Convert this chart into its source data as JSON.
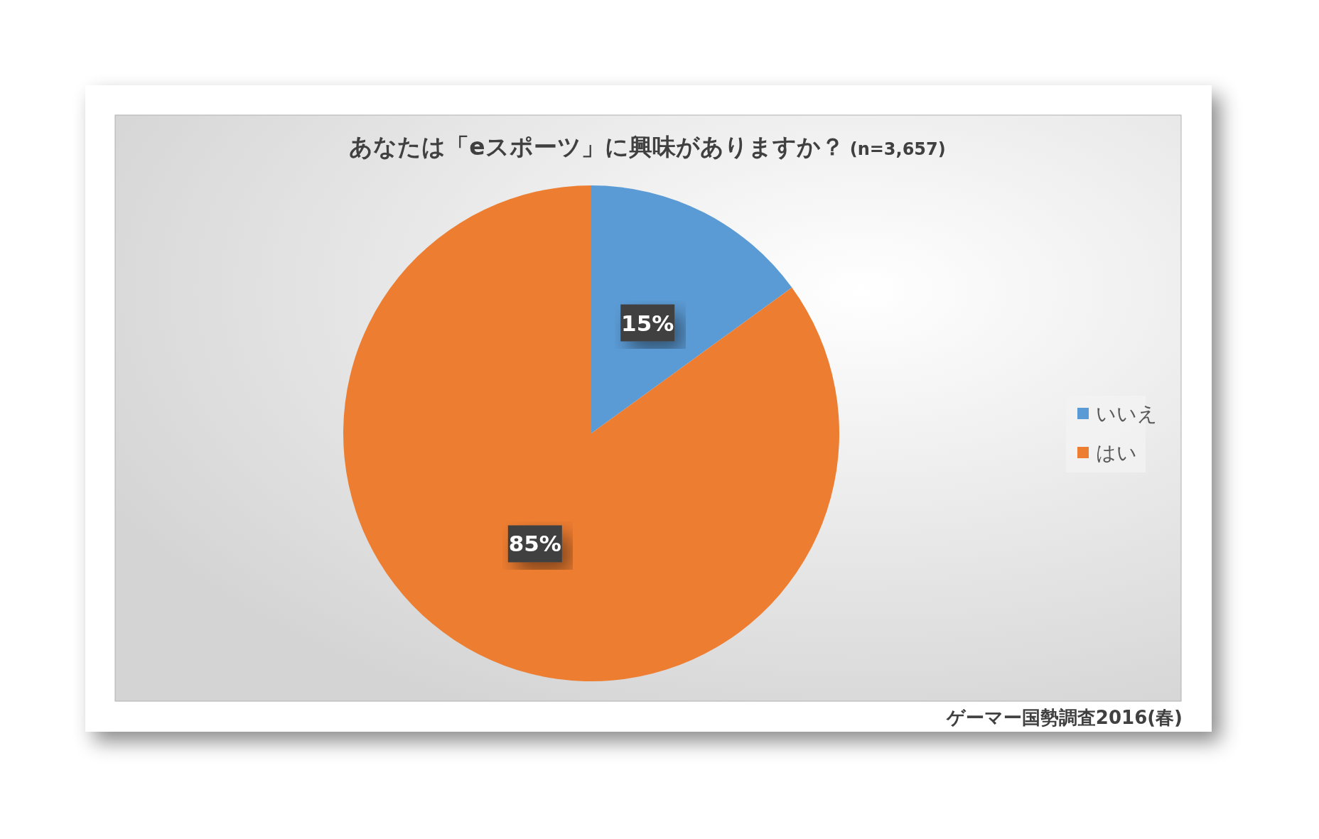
{
  "chart_data": {
    "type": "pie",
    "title": "あなたは「eスポーツ」に興味がありますか？",
    "subtitle": "(n=3,657)",
    "categories": [
      "いいえ",
      "はい"
    ],
    "values": [
      15,
      85
    ],
    "colors": [
      "#5b9bd5",
      "#ed7d31"
    ],
    "value_labels": [
      "15%",
      "85%"
    ],
    "legend": "right",
    "annotations": [
      "ゲーマー国勢調査2016(春)"
    ]
  }
}
